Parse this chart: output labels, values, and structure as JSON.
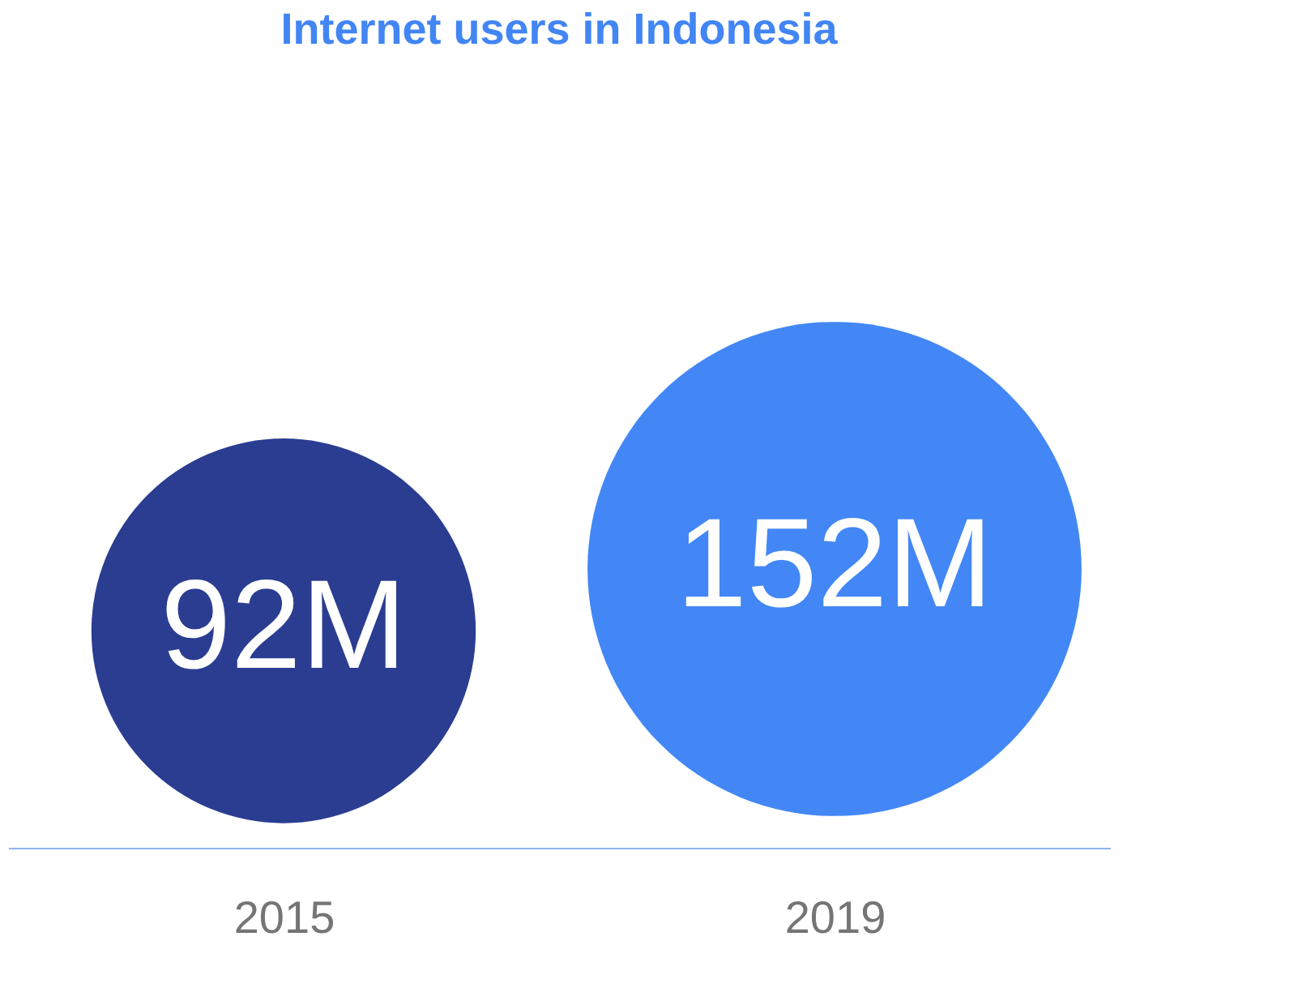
{
  "chart_data": {
    "type": "other",
    "title": "Internet users in Indonesia",
    "categories": [
      "2015",
      "2019"
    ],
    "values": [
      92,
      152
    ],
    "value_labels": [
      "92M",
      "152M"
    ],
    "colors": [
      "#2b3d91",
      "#4287f5"
    ]
  }
}
